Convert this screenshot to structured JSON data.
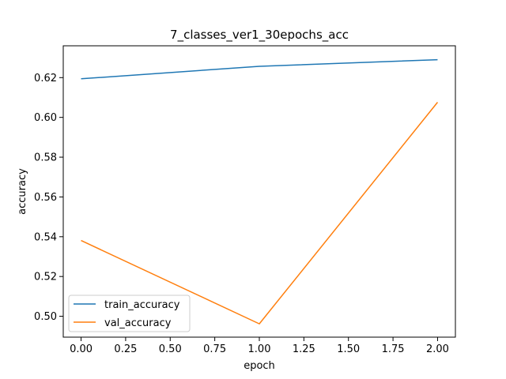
{
  "chart_data": {
    "type": "line",
    "title": "7_classes_ver1_30epochs_acc",
    "xlabel": "epoch",
    "ylabel": "accuracy",
    "x": [
      0,
      1,
      2
    ],
    "xlim": [
      -0.1,
      2.1
    ],
    "ylim": [
      0.4895,
      0.636
    ],
    "xticks": [
      0.0,
      0.25,
      0.5,
      0.75,
      1.0,
      1.25,
      1.5,
      1.75,
      2.0
    ],
    "xtick_labels": [
      "0.00",
      "0.25",
      "0.50",
      "0.75",
      "1.00",
      "1.25",
      "1.50",
      "1.75",
      "2.00"
    ],
    "yticks": [
      0.5,
      0.52,
      0.54,
      0.56,
      0.58,
      0.6,
      0.62
    ],
    "ytick_labels": [
      "0.50",
      "0.52",
      "0.54",
      "0.56",
      "0.58",
      "0.60",
      "0.62"
    ],
    "grid": false,
    "legend_position": "lower-left",
    "series": [
      {
        "name": "train_accuracy",
        "color": "#1f77b4",
        "values": [
          0.6194,
          0.6257,
          0.629
        ]
      },
      {
        "name": "val_accuracy",
        "color": "#ff7f0e",
        "values": [
          0.5381,
          0.4962,
          0.6076
        ]
      }
    ]
  }
}
